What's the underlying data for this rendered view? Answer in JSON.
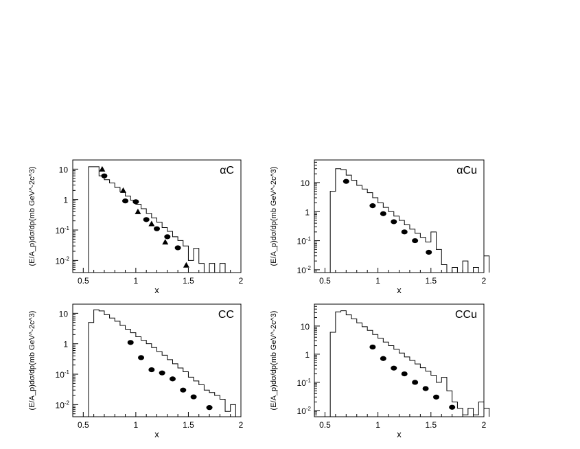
{
  "chart_data": [
    {
      "type": "scatter",
      "title": "αC",
      "xlabel": "x",
      "ylabel": "(E/A_p)dσ/dp(mb GeV^-2c^3)",
      "xlim": [
        0.4,
        2.0
      ],
      "ylim": [
        0.004,
        20
      ],
      "yscale": "log",
      "xticks": [
        {
          "v": 0.5,
          "label": "0.5"
        },
        {
          "v": 1,
          "label": "1"
        },
        {
          "v": 1.5,
          "label": "1.5"
        },
        {
          "v": 2,
          "label": "2"
        }
      ],
      "yticks": [
        {
          "v": 0.01,
          "base": "10",
          "exp": "-2"
        },
        {
          "v": 0.1,
          "base": "10",
          "exp": "-1"
        },
        {
          "v": 1,
          "base": "1",
          "exp": ""
        },
        {
          "v": 10,
          "base": "10",
          "exp": ""
        }
      ],
      "histogram": {
        "edges": [
          0.55,
          0.6,
          0.65,
          0.7,
          0.75,
          0.8,
          0.85,
          0.9,
          0.95,
          1.0,
          1.05,
          1.1,
          1.15,
          1.2,
          1.25,
          1.3,
          1.35,
          1.4,
          1.45,
          1.5,
          1.55,
          1.6,
          1.65,
          1.7,
          1.75,
          1.8,
          1.85,
          1.9
        ],
        "values": [
          12,
          12,
          6,
          4.5,
          3.5,
          2.5,
          1.8,
          1.3,
          0.95,
          0.7,
          0.5,
          0.35,
          0.25,
          0.18,
          0.12,
          0.09,
          0.06,
          0.045,
          0.03,
          0.01,
          0.025,
          0.008,
          0.004,
          0.008,
          0.004,
          0.008,
          0.004
        ]
      },
      "series": [
        {
          "marker": "circle",
          "x": [
            0.7,
            0.9,
            1.0,
            1.1,
            1.2,
            1.3,
            1.4
          ],
          "y": [
            6,
            0.9,
            0.85,
            0.22,
            0.11,
            0.06,
            0.026
          ]
        },
        {
          "marker": "triangle",
          "x": [
            0.68,
            0.88,
            1.02,
            1.15,
            1.28,
            1.48
          ],
          "y": [
            10,
            2,
            0.4,
            0.16,
            0.04,
            0.007
          ]
        }
      ]
    },
    {
      "type": "scatter",
      "title": "αCu",
      "xlabel": "x",
      "ylabel": "(E/A_p)dσ/dp(mb GeV^-2c^3)",
      "xlim": [
        0.4,
        2.0
      ],
      "ylim": [
        0.008,
        60
      ],
      "yscale": "log",
      "xticks": [
        {
          "v": 0.5,
          "label": "0.5"
        },
        {
          "v": 1,
          "label": "1"
        },
        {
          "v": 1.5,
          "label": "1.5"
        },
        {
          "v": 2,
          "label": "2"
        }
      ],
      "yticks": [
        {
          "v": 0.01,
          "base": "10",
          "exp": "-2"
        },
        {
          "v": 0.1,
          "base": "10",
          "exp": "-1"
        },
        {
          "v": 1,
          "base": "1",
          "exp": ""
        },
        {
          "v": 10,
          "base": "10",
          "exp": ""
        }
      ],
      "histogram": {
        "edges": [
          0.55,
          0.6,
          0.65,
          0.7,
          0.75,
          0.8,
          0.85,
          0.9,
          0.95,
          1.0,
          1.05,
          1.1,
          1.15,
          1.2,
          1.25,
          1.3,
          1.35,
          1.4,
          1.45,
          1.5,
          1.55,
          1.6,
          1.65,
          1.7,
          1.75,
          1.8,
          1.85,
          1.9,
          1.95,
          2.0
        ],
        "values": [
          5,
          30,
          28,
          18,
          12,
          8,
          6,
          4.5,
          3,
          2,
          1.4,
          1,
          0.7,
          0.5,
          0.35,
          0.25,
          0.18,
          0.13,
          0.09,
          0.2,
          0.05,
          0.015,
          0.008,
          0.012,
          0.008,
          0.02,
          0.008,
          0.012,
          0.008,
          0.03
        ]
      },
      "series": [
        {
          "marker": "circle",
          "x": [
            0.7,
            0.95,
            1.05,
            1.15,
            1.25,
            1.35,
            1.48
          ],
          "y": [
            11,
            1.6,
            0.85,
            0.45,
            0.2,
            0.1,
            0.04
          ]
        }
      ]
    },
    {
      "type": "scatter",
      "title": "CC",
      "xlabel": "x",
      "ylabel": "(E/A_p)dσ/dp(mb GeV^-2c^3)",
      "xlim": [
        0.4,
        2.0
      ],
      "ylim": [
        0.004,
        20
      ],
      "yscale": "log",
      "xticks": [
        {
          "v": 0.5,
          "label": "0.5"
        },
        {
          "v": 1,
          "label": "1"
        },
        {
          "v": 1.5,
          "label": "1.5"
        },
        {
          "v": 2,
          "label": "2"
        }
      ],
      "yticks": [
        {
          "v": 0.01,
          "base": "10",
          "exp": "-2"
        },
        {
          "v": 0.1,
          "base": "10",
          "exp": "-1"
        },
        {
          "v": 1,
          "base": "1",
          "exp": ""
        },
        {
          "v": 10,
          "base": "10",
          "exp": ""
        }
      ],
      "histogram": {
        "edges": [
          0.55,
          0.6,
          0.65,
          0.7,
          0.75,
          0.8,
          0.85,
          0.9,
          0.95,
          1.0,
          1.05,
          1.1,
          1.15,
          1.2,
          1.25,
          1.3,
          1.35,
          1.4,
          1.45,
          1.5,
          1.55,
          1.6,
          1.65,
          1.7,
          1.75,
          1.8,
          1.85,
          1.9,
          1.95
        ],
        "values": [
          5,
          13,
          12,
          9,
          7,
          5.5,
          4,
          3,
          2.3,
          1.7,
          1.3,
          1,
          0.75,
          0.55,
          0.42,
          0.3,
          0.22,
          0.16,
          0.12,
          0.08,
          0.06,
          0.045,
          0.03,
          0.025,
          0.02,
          0.015,
          0.006,
          0.01,
          0.004
        ]
      },
      "series": [
        {
          "marker": "circle",
          "x": [
            0.95,
            1.05,
            1.15,
            1.25,
            1.35,
            1.45,
            1.55,
            1.7
          ],
          "y": [
            1.1,
            0.35,
            0.14,
            0.11,
            0.07,
            0.03,
            0.018,
            0.008
          ]
        }
      ]
    },
    {
      "type": "scatter",
      "title": "CCu",
      "xlabel": "x",
      "ylabel": "(E/A_p)dσ/dp(mb GeV^-2c^3)",
      "xlim": [
        0.4,
        2.0
      ],
      "ylim": [
        0.006,
        60
      ],
      "yscale": "log",
      "xticks": [
        {
          "v": 0.5,
          "label": "0.5"
        },
        {
          "v": 1,
          "label": "1"
        },
        {
          "v": 1.5,
          "label": "1.5"
        },
        {
          "v": 2,
          "label": "2"
        }
      ],
      "yticks": [
        {
          "v": 0.01,
          "base": "10",
          "exp": "-2"
        },
        {
          "v": 0.1,
          "base": "10",
          "exp": "-1"
        },
        {
          "v": 1,
          "base": "1",
          "exp": ""
        },
        {
          "v": 10,
          "base": "10",
          "exp": ""
        }
      ],
      "histogram": {
        "edges": [
          0.55,
          0.6,
          0.65,
          0.7,
          0.75,
          0.8,
          0.85,
          0.9,
          0.95,
          1.0,
          1.05,
          1.1,
          1.15,
          1.2,
          1.25,
          1.3,
          1.35,
          1.4,
          1.45,
          1.5,
          1.55,
          1.6,
          1.65,
          1.7,
          1.75,
          1.8,
          1.85,
          1.9,
          1.95,
          2.0
        ],
        "values": [
          6,
          32,
          35,
          25,
          18,
          13,
          9.5,
          7,
          5,
          3.7,
          2.7,
          2,
          1.5,
          1.1,
          0.8,
          0.6,
          0.45,
          0.33,
          0.25,
          0.18,
          0.1,
          0.15,
          0.05,
          0.02,
          0.012,
          0.007,
          0.012,
          0.007,
          0.02,
          0.012
        ]
      },
      "series": [
        {
          "marker": "circle",
          "x": [
            0.95,
            1.05,
            1.15,
            1.25,
            1.35,
            1.45,
            1.55,
            1.7
          ],
          "y": [
            1.8,
            0.7,
            0.32,
            0.2,
            0.1,
            0.06,
            0.03,
            0.013
          ]
        }
      ]
    }
  ]
}
